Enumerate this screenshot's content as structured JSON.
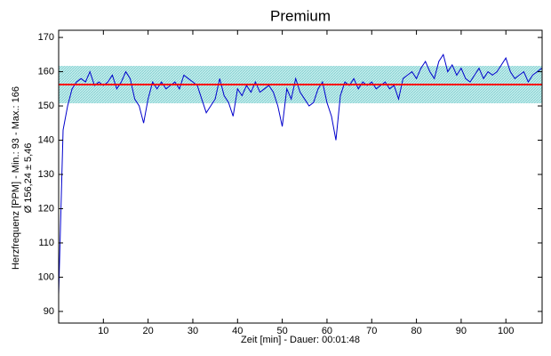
{
  "chart_data": {
    "type": "line",
    "title": "Premium",
    "x_label": "Zeit [min] - Dauer: 00:01:48",
    "y_label": [
      "Herzfrequenz [PPM] - Min.: 93 - Max.: 166",
      "Ø 156,24 ± 5,46"
    ],
    "x": [
      0,
      1,
      2,
      3,
      4,
      5,
      6,
      7,
      8,
      9,
      10,
      11,
      12,
      13,
      14,
      15,
      16,
      17,
      18,
      19,
      20,
      21,
      22,
      23,
      24,
      25,
      26,
      27,
      28,
      29,
      30,
      31,
      32,
      33,
      34,
      35,
      36,
      37,
      38,
      39,
      40,
      41,
      42,
      43,
      44,
      45,
      46,
      47,
      48,
      49,
      50,
      51,
      52,
      53,
      54,
      55,
      56,
      57,
      58,
      59,
      60,
      61,
      62,
      63,
      64,
      65,
      66,
      67,
      68,
      69,
      70,
      71,
      72,
      73,
      74,
      75,
      76,
      77,
      78,
      79,
      80,
      81,
      82,
      83,
      84,
      85,
      86,
      87,
      88,
      89,
      90,
      91,
      92,
      93,
      94,
      95,
      96,
      97,
      98,
      99,
      100,
      101,
      102,
      103,
      104,
      105,
      106,
      107,
      108
    ],
    "series": [
      {
        "name": "Herzfrequenz",
        "color": "#0000cc",
        "values": [
          95,
          143,
          150,
          155,
          157,
          158,
          157,
          160,
          156,
          157,
          156,
          157,
          159,
          155,
          157,
          160,
          158,
          152,
          150,
          145,
          152,
          157,
          155,
          157,
          155,
          156,
          157,
          155,
          159,
          158,
          157,
          156,
          152,
          148,
          150,
          152,
          158,
          153,
          151,
          147,
          155,
          153,
          156,
          154,
          157,
          154,
          155,
          156,
          154,
          150,
          144,
          155,
          152,
          158,
          154,
          152,
          150,
          151,
          155,
          157,
          151,
          147,
          140,
          153,
          157,
          156,
          158,
          155,
          157,
          156,
          157,
          155,
          156,
          157,
          155,
          156,
          152,
          158,
          159,
          160,
          158,
          161,
          163,
          160,
          158,
          163,
          165,
          160,
          162,
          159,
          161,
          158,
          157,
          159,
          161,
          158,
          160,
          159,
          160,
          162,
          164,
          160,
          158,
          159,
          160,
          157,
          159,
          160,
          161
        ]
      }
    ],
    "mean": 156.24,
    "mean_color": "#ff0000",
    "std": 5.46,
    "band_color": "#9ad9d9",
    "xlim": [
      0,
      108.1
    ],
    "ylim": [
      86.6,
      172.1
    ],
    "xticks": [
      10,
      20,
      30,
      40,
      50,
      60,
      70,
      80,
      90,
      100
    ],
    "yticks": [
      90,
      100,
      110,
      120,
      130,
      140,
      150,
      160,
      170
    ]
  }
}
